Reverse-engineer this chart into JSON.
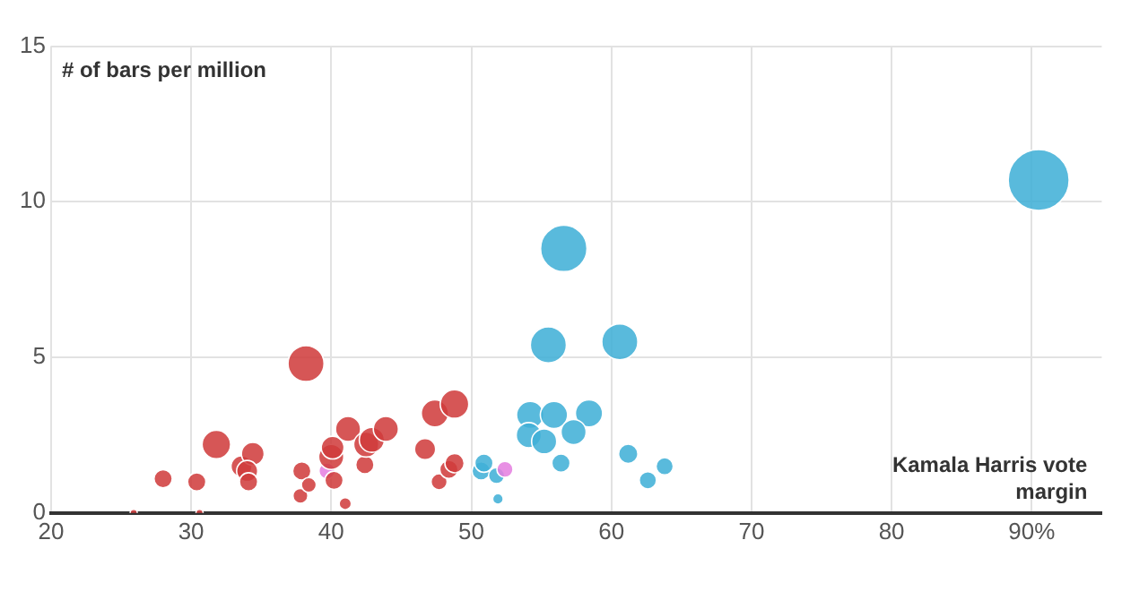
{
  "chart_data": {
    "type": "bubble",
    "xlabel": "Kamala Harris vote margin",
    "ylabel": "# of bars per million",
    "xlim": [
      20,
      95
    ],
    "xticks": [
      20,
      30,
      40,
      50,
      60,
      70,
      80,
      {
        "value": 90,
        "label": "90%"
      }
    ],
    "ylim": [
      0,
      15
    ],
    "yticks": [
      0,
      5,
      10,
      15
    ],
    "grid": true,
    "series": [
      {
        "color": "#d03c3c",
        "x": [
          25.9,
          30.6,
          28.0,
          30.4,
          31.8,
          33.6,
          34.4,
          34.0,
          34.1,
          38.2,
          37.9,
          37.8,
          38.4,
          40.0,
          40.1,
          40.2,
          41.0,
          41.2,
          42.4,
          42.5,
          42.9,
          43.9,
          46.7,
          47.4,
          48.8,
          47.7,
          48.4,
          48.8
        ],
        "values": [
          0,
          0,
          1.1,
          1.0,
          2.2,
          1.5,
          1.9,
          1.35,
          1.0,
          4.8,
          1.35,
          0.55,
          0.9,
          1.8,
          2.1,
          1.05,
          0.3,
          2.7,
          1.55,
          2.2,
          2.35,
          2.7,
          2.05,
          3.2,
          3.5,
          1.0,
          1.4,
          1.6
        ],
        "sizes": [
          0.014,
          0.014,
          0.09,
          0.09,
          0.22,
          0.12,
          0.14,
          0.12,
          0.09,
          0.35,
          0.09,
          0.06,
          0.06,
          0.17,
          0.14,
          0.09,
          0.04,
          0.17,
          0.09,
          0.17,
          0.17,
          0.17,
          0.12,
          0.2,
          0.22,
          0.07,
          0.09,
          0.1
        ]
      },
      {
        "color": "#e57fe0",
        "x": [
          39.7,
          52.4
        ],
        "values": [
          1.35,
          1.4
        ],
        "sizes": [
          0.07,
          0.07
        ]
      },
      {
        "color": "#40afd7",
        "x": [
          50.7,
          50.9,
          51.8,
          51.9,
          56.6,
          55.5,
          60.6,
          54.2,
          55.9,
          58.4,
          54.1,
          55.2,
          57.3,
          56.4,
          61.2,
          62.6,
          63.8,
          90.5
        ],
        "values": [
          1.35,
          1.6,
          1.2,
          0.45,
          8.5,
          5.4,
          5.5,
          3.15,
          3.15,
          3.2,
          2.5,
          2.3,
          2.6,
          1.6,
          1.9,
          1.05,
          1.5,
          10.7
        ],
        "sizes": [
          0.09,
          0.09,
          0.07,
          0.03,
          0.58,
          0.35,
          0.35,
          0.2,
          0.2,
          0.2,
          0.17,
          0.17,
          0.17,
          0.09,
          0.1,
          0.08,
          0.08,
          1
        ]
      }
    ]
  }
}
